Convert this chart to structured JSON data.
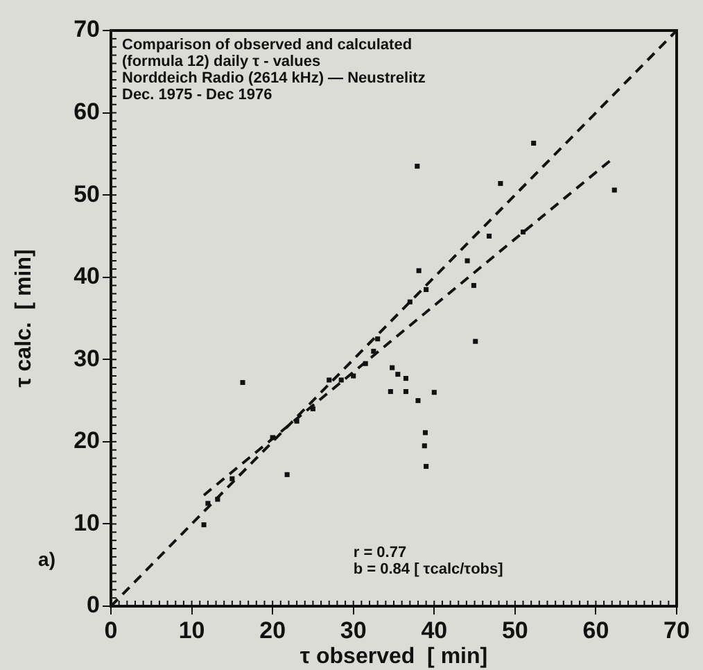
{
  "chart_data": {
    "type": "scatter",
    "title": "Comparison of observed and calculated (formula 12) daily τ - values",
    "subtitle": "Norddeich Radio (2614 kHz) — Neustrelitz",
    "xlabel": "τ observed  [ min]",
    "ylabel": "τ calc.  [ min]",
    "annotations": [
      "Dec. 1975 - Dec 1976",
      "r = 0.77",
      "b = 0.84 [ τcalc/τobs]",
      "a)"
    ],
    "series": [
      {
        "marker": "square",
        "color": "#111111",
        "x": [
          11.5,
          13.2,
          12,
          15,
          16.3,
          21.8,
          20,
          23,
          25,
          27,
          28.5,
          30,
          31.5,
          32.5,
          33,
          34.8,
          35.5,
          36.5,
          34.6,
          36.5,
          38,
          40,
          38.9,
          38.8,
          39,
          38.1,
          37,
          39,
          37.9,
          44.1,
          44.9,
          45.1,
          46.8,
          48.2,
          52.3,
          51,
          62.3
        ],
        "values": [
          9.9,
          13,
          12.5,
          15.5,
          27.2,
          16,
          20.5,
          22.5,
          24,
          27.5,
          27.5,
          28,
          29.5,
          31,
          32.5,
          29,
          28.2,
          27.7,
          26.1,
          26.1,
          25,
          26,
          21.1,
          19.5,
          17,
          40.8,
          37,
          38.5,
          53.5,
          42,
          39,
          32.2,
          45,
          51.4,
          56.3,
          45.5,
          50.6
        ]
      },
      {
        "type": "line",
        "color": "#111111",
        "line_style": "dashed",
        "x": [
          0,
          70
        ],
        "values": [
          0,
          70
        ]
      },
      {
        "type": "line",
        "color": "#111111",
        "line_style": "dashed",
        "x": [
          11.5,
          62.3
        ],
        "values": [
          13.5,
          54.6
        ]
      }
    ],
    "xlim": [
      0,
      70
    ],
    "ylim": [
      0,
      70
    ],
    "xticks": [
      0,
      10,
      20,
      30,
      40,
      50,
      60,
      70
    ],
    "yticks": [
      0,
      10,
      20,
      30,
      40,
      50,
      60,
      70
    ],
    "grid": false,
    "legend": false
  }
}
